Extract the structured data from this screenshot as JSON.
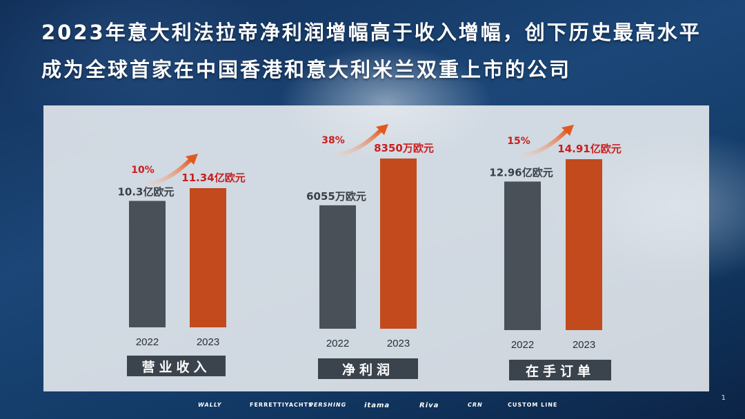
{
  "title_line1": "2023年意大利法拉帝净利润增幅高于收入增幅，创下历史最高水平",
  "title_line2": "成为全球首家在中国香港和意大利米兰双重上市的公司",
  "colors": {
    "bar_2022": "#4a5058",
    "bar_2023": "#c24a1c",
    "label_2023": "#c81e1e",
    "pct": "#c81e1e",
    "label_2022": "#3a3f45"
  },
  "chart_data": {
    "type": "bar",
    "panels": [
      {
        "category": "营业收入",
        "years": [
          "2022",
          "2023"
        ],
        "values": [
          10.3,
          11.34
        ],
        "labels": [
          "10.3亿欧元",
          "11.34亿欧元"
        ],
        "growth": "10%"
      },
      {
        "category": "净利润",
        "years": [
          "2022",
          "2023"
        ],
        "values": [
          6055,
          8350
        ],
        "labels": [
          "6055万欧元",
          "8350万欧元"
        ],
        "growth": "38%"
      },
      {
        "category": "在手订单",
        "years": [
          "2022",
          "2023"
        ],
        "values": [
          12.96,
          14.91
        ],
        "labels": [
          "12.96亿欧元",
          "14.91亿欧元"
        ],
        "growth": "15%"
      }
    ]
  },
  "footer": {
    "brands": [
      "WALLY",
      "FERRETTIYACHTS",
      "PERSHING",
      "itama",
      "Riva",
      "CRN",
      "CUSTOM LINE"
    ]
  },
  "page_number": "1"
}
